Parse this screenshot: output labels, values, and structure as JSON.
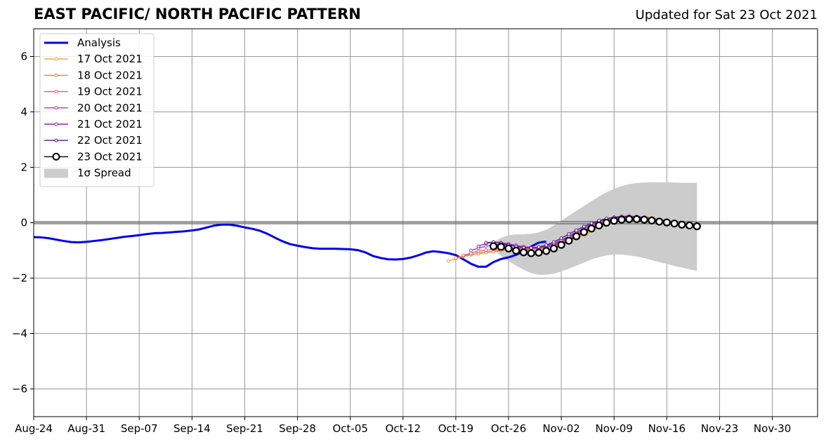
{
  "header": {
    "title": "EAST PACIFIC/ NORTH PACIFIC PATTERN",
    "updated": "Updated for Sat 23 Oct 2021"
  },
  "colors": {
    "analysis": "#0000ee",
    "spread": "#cccccc",
    "grid": "#999999",
    "zero_line": "#555555"
  },
  "chart_data": {
    "type": "line",
    "title": "EAST PACIFIC/ NORTH PACIFIC PATTERN",
    "subtitle": "Updated for Sat 23 Oct 2021",
    "xlim": [
      "2021-08-24",
      "2021-12-06"
    ],
    "ylim": [
      -7,
      7
    ],
    "grid": true,
    "legend_position": "top-left",
    "x_ticks": [
      "Aug-24",
      "Aug-31",
      "Sep-07",
      "Sep-14",
      "Sep-21",
      "Sep-28",
      "Oct-05",
      "Oct-12",
      "Oct-19",
      "Oct-26",
      "Nov-02",
      "Nov-09",
      "Nov-16",
      "Nov-23",
      "Nov-30"
    ],
    "y_ticks": [
      -6,
      -4,
      -2,
      0,
      2,
      4,
      6
    ],
    "y_tick_labels": [
      "−6",
      "−4",
      "−2",
      "0",
      "2",
      "4",
      "6"
    ],
    "legend": [
      "Analysis",
      "17 Oct 2021",
      "18 Oct 2021",
      "19 Oct 2021",
      "20 Oct 2021",
      "21 Oct 2021",
      "22 Oct 2021",
      "23 Oct 2021",
      "1σ Spread"
    ],
    "series": [
      {
        "name": "Analysis",
        "color": "#0000ee",
        "start": "2021-08-24",
        "values": [
          -0.52,
          -0.53,
          -0.56,
          -0.61,
          -0.66,
          -0.7,
          -0.71,
          -0.69,
          -0.66,
          -0.63,
          -0.59,
          -0.55,
          -0.51,
          -0.48,
          -0.45,
          -0.41,
          -0.38,
          -0.37,
          -0.35,
          -0.33,
          -0.31,
          -0.28,
          -0.24,
          -0.17,
          -0.1,
          -0.07,
          -0.07,
          -0.11,
          -0.17,
          -0.22,
          -0.29,
          -0.4,
          -0.54,
          -0.67,
          -0.77,
          -0.83,
          -0.88,
          -0.92,
          -0.94,
          -0.94,
          -0.94,
          -0.95,
          -0.96,
          -0.99,
          -1.07,
          -1.2,
          -1.27,
          -1.32,
          -1.33,
          -1.31,
          -1.26,
          -1.18,
          -1.08,
          -1.03,
          -1.06,
          -1.1,
          -1.17,
          -1.32,
          -1.48,
          -1.59,
          -1.59,
          -1.42,
          -1.31,
          -1.25,
          -1.16,
          -1.04,
          -0.86,
          -0.72,
          -0.68
        ]
      },
      {
        "name": "17 Oct 2021",
        "color": "#f5a623",
        "start": "2021-10-18",
        "values": [
          -1.38,
          -1.3,
          -1.22,
          -1.16,
          -1.1,
          -1.06,
          -1.02,
          -1.0,
          -0.98,
          -0.96,
          -0.97,
          -0.96,
          -0.94,
          -0.9,
          -0.84,
          -0.75,
          -0.65,
          -0.55,
          -0.43,
          -0.3,
          -0.18,
          -0.08,
          0.02,
          0.1,
          0.16,
          0.2,
          0.2,
          0.18
        ]
      },
      {
        "name": "18 Oct 2021",
        "color": "#ef7f3a",
        "start": "2021-10-19",
        "values": [
          -1.27,
          -1.2,
          -1.15,
          -1.12,
          -1.08,
          -1.04,
          -1.0,
          -0.98,
          -0.96,
          -0.95,
          -0.95,
          -0.93,
          -0.89,
          -0.82,
          -0.72,
          -0.6,
          -0.48,
          -0.36,
          -0.24,
          -0.12,
          -0.02,
          0.06,
          0.13,
          0.17,
          0.19,
          0.19,
          0.17
        ]
      },
      {
        "name": "19 Oct 2021",
        "color": "#e05a7a",
        "start": "2021-10-20",
        "values": [
          -1.18,
          -1.1,
          -1.03,
          -0.99,
          -0.96,
          -0.94,
          -0.92,
          -0.92,
          -0.93,
          -0.94,
          -0.93,
          -0.89,
          -0.81,
          -0.7,
          -0.57,
          -0.44,
          -0.31,
          -0.18,
          -0.06,
          0.04,
          0.12,
          0.18,
          0.21,
          0.21,
          0.19,
          0.15,
          0.1
        ]
      },
      {
        "name": "20 Oct 2021",
        "color": "#b03fa8",
        "start": "2021-10-21",
        "values": [
          -1.0,
          -0.92,
          -0.85,
          -0.8,
          -0.79,
          -0.81,
          -0.84,
          -0.87,
          -0.9,
          -0.91,
          -0.88,
          -0.8,
          -0.67,
          -0.53,
          -0.39,
          -0.26,
          -0.13,
          -0.01,
          0.09,
          0.16,
          0.2,
          0.22,
          0.21,
          0.19,
          0.15,
          0.1,
          0.05
        ]
      },
      {
        "name": "21 Oct 2021",
        "color": "#8f20c6",
        "start": "2021-10-22",
        "values": [
          -0.85,
          -0.75,
          -0.7,
          -0.72,
          -0.77,
          -0.82,
          -0.87,
          -0.9,
          -0.89,
          -0.84,
          -0.75,
          -0.63,
          -0.49,
          -0.34,
          -0.2,
          -0.07,
          0.05,
          0.14,
          0.2,
          0.23,
          0.24,
          0.22,
          0.19,
          0.15,
          0.11,
          0.07,
          0.03
        ]
      },
      {
        "name": "22 Oct 2021",
        "color": "#5a1a8c",
        "start": "2021-10-23",
        "values": [
          -0.72,
          -0.7,
          -0.74,
          -0.8,
          -0.86,
          -0.9,
          -0.91,
          -0.88,
          -0.81,
          -0.7,
          -0.56,
          -0.41,
          -0.27,
          -0.14,
          -0.02,
          0.08,
          0.15,
          0.19,
          0.2,
          0.19,
          0.16,
          0.12,
          0.08,
          0.04,
          0.0,
          -0.03
        ]
      },
      {
        "name": "23 Oct 2021",
        "color": "#000000",
        "start": "2021-10-24",
        "values": [
          -0.85,
          -0.87,
          -0.93,
          -1.01,
          -1.07,
          -1.1,
          -1.08,
          -1.02,
          -0.93,
          -0.8,
          -0.65,
          -0.49,
          -0.34,
          -0.21,
          -0.1,
          0.0,
          0.07,
          0.11,
          0.13,
          0.13,
          0.11,
          0.08,
          0.04,
          0.01,
          -0.03,
          -0.07,
          -0.1,
          -0.13
        ]
      }
    ],
    "spread": {
      "name": "1σ Spread",
      "color": "#cccccc",
      "start": "2021-10-24",
      "upper": [
        -0.7,
        -0.55,
        -0.45,
        -0.42,
        -0.42,
        -0.4,
        -0.35,
        -0.25,
        -0.1,
        0.08,
        0.25,
        0.43,
        0.6,
        0.78,
        0.95,
        1.1,
        1.22,
        1.32,
        1.39,
        1.43,
        1.45,
        1.46,
        1.46,
        1.46,
        1.45,
        1.44,
        1.44,
        1.44
      ],
      "lower": [
        -1.0,
        -1.18,
        -1.38,
        -1.55,
        -1.7,
        -1.82,
        -1.88,
        -1.88,
        -1.84,
        -1.76,
        -1.66,
        -1.55,
        -1.44,
        -1.33,
        -1.24,
        -1.18,
        -1.15,
        -1.15,
        -1.18,
        -1.22,
        -1.28,
        -1.35,
        -1.42,
        -1.49,
        -1.56,
        -1.62,
        -1.68,
        -1.74
      ]
    }
  }
}
